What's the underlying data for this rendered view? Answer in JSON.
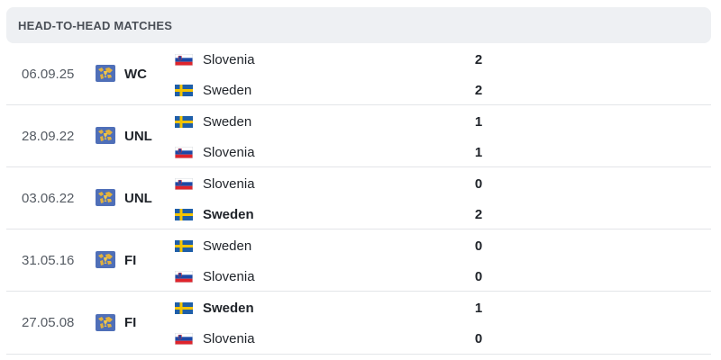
{
  "section": {
    "title": "HEAD-TO-HEAD MATCHES"
  },
  "icons": {
    "competition": "world-map-trophy-icon",
    "flag_slovenia": "slovenia-flag-icon",
    "flag_sweden": "sweden-flag-icon"
  },
  "colors": {
    "header_bg": "#eef0f3",
    "divider": "#e3e5e8",
    "sweden_blue": "#1f5fa8",
    "sweden_yellow": "#f4c400",
    "slovenia_red": "#e0242b",
    "slovenia_blue": "#1c49a6"
  },
  "matches": [
    {
      "date": "06.09.25",
      "competition": "WC",
      "teams": [
        {
          "name": "Slovenia",
          "flag": "slovenia",
          "score": "2",
          "winner": false
        },
        {
          "name": "Sweden",
          "flag": "sweden",
          "score": "2",
          "winner": false
        }
      ]
    },
    {
      "date": "28.09.22",
      "competition": "UNL",
      "teams": [
        {
          "name": "Sweden",
          "flag": "sweden",
          "score": "1",
          "winner": false
        },
        {
          "name": "Slovenia",
          "flag": "slovenia",
          "score": "1",
          "winner": false
        }
      ]
    },
    {
      "date": "03.06.22",
      "competition": "UNL",
      "teams": [
        {
          "name": "Slovenia",
          "flag": "slovenia",
          "score": "0",
          "winner": false
        },
        {
          "name": "Sweden",
          "flag": "sweden",
          "score": "2",
          "winner": true
        }
      ]
    },
    {
      "date": "31.05.16",
      "competition": "FI",
      "teams": [
        {
          "name": "Sweden",
          "flag": "sweden",
          "score": "0",
          "winner": false
        },
        {
          "name": "Slovenia",
          "flag": "slovenia",
          "score": "0",
          "winner": false
        }
      ]
    },
    {
      "date": "27.05.08",
      "competition": "FI",
      "teams": [
        {
          "name": "Sweden",
          "flag": "sweden",
          "score": "1",
          "winner": true
        },
        {
          "name": "Slovenia",
          "flag": "slovenia",
          "score": "0",
          "winner": false
        }
      ]
    }
  ]
}
